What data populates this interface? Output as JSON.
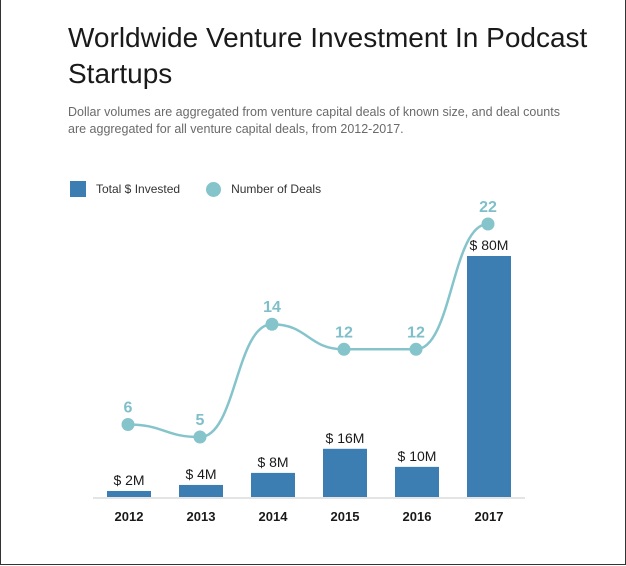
{
  "colors": {
    "bar": "#3d7eb2",
    "line": "#86c4cc",
    "deal_label": "#7fbfca",
    "axis": "#c8c8c8"
  },
  "chart_data": {
    "type": "bar",
    "title": "Worldwide Venture Investment In Podcast Startups",
    "subtitle": "Dollar volumes are aggregated from venture capital deals of known size, and deal counts are aggregated for all venture capital deals, from 2012-2017.",
    "legend": {
      "position": "top-left"
    },
    "categories": [
      "2012",
      "2013",
      "2014",
      "2015",
      "2016",
      "2017"
    ],
    "grid": false,
    "series": [
      {
        "name": "Total $ Invested",
        "type": "bar",
        "values": [
          2,
          4,
          8,
          16,
          10,
          80
        ],
        "labels": [
          "$ 2M",
          "$ 4M",
          "$ 8M",
          "$ 16M",
          "$ 10M",
          "$ 80M"
        ]
      },
      {
        "name": "Number of Deals",
        "type": "line",
        "smooth": true,
        "values": [
          6,
          5,
          14,
          12,
          12,
          22
        ],
        "labels": [
          "6",
          "5",
          "14",
          "12",
          "12",
          "22"
        ]
      }
    ]
  }
}
